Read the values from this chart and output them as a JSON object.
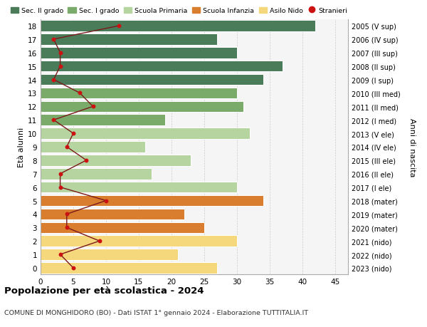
{
  "ages": [
    18,
    17,
    16,
    15,
    14,
    13,
    12,
    11,
    10,
    9,
    8,
    7,
    6,
    5,
    4,
    3,
    2,
    1,
    0
  ],
  "years": [
    "2005 (V sup)",
    "2006 (IV sup)",
    "2007 (III sup)",
    "2008 (II sup)",
    "2009 (I sup)",
    "2010 (III med)",
    "2011 (II med)",
    "2012 (I med)",
    "2013 (V ele)",
    "2014 (IV ele)",
    "2015 (III ele)",
    "2016 (II ele)",
    "2017 (I ele)",
    "2018 (mater)",
    "2019 (mater)",
    "2020 (mater)",
    "2021 (nido)",
    "2022 (nido)",
    "2023 (nido)"
  ],
  "bar_values": [
    42,
    27,
    30,
    37,
    34,
    30,
    31,
    19,
    32,
    16,
    23,
    17,
    30,
    34,
    22,
    25,
    30,
    21,
    27
  ],
  "stranieri": [
    12,
    2,
    3,
    3,
    2,
    6,
    8,
    2,
    5,
    4,
    7,
    3,
    3,
    10,
    4,
    4,
    9,
    3,
    5
  ],
  "bar_colors": [
    "#4a7c59",
    "#4a7c59",
    "#4a7c59",
    "#4a7c59",
    "#4a7c59",
    "#7aab6b",
    "#7aab6b",
    "#7aab6b",
    "#b5d4a0",
    "#b5d4a0",
    "#b5d4a0",
    "#b5d4a0",
    "#b5d4a0",
    "#d97e2e",
    "#d97e2e",
    "#d97e2e",
    "#f5d87c",
    "#f5d87c",
    "#f5d87c"
  ],
  "legend_labels": [
    "Sec. II grado",
    "Sec. I grado",
    "Scuola Primaria",
    "Scuola Infanzia",
    "Asilo Nido",
    "Stranieri"
  ],
  "legend_colors_list": [
    "#4a7c59",
    "#7aab6b",
    "#b5d4a0",
    "#d97e2e",
    "#f5d87c",
    "#cc1111"
  ],
  "title_main": "Popolazione per età scolastica - 2024",
  "title_sub": "COMUNE DI MONGHIDORO (BO) - Dati ISTAT 1° gennaio 2024 - Elaborazione TUTTITALIA.IT",
  "ylabel_left": "Età alunni",
  "ylabel_right": "Anni di nascita",
  "xlim": [
    0,
    47
  ],
  "xticks": [
    0,
    5,
    10,
    15,
    20,
    25,
    30,
    35,
    40,
    45
  ],
  "bar_height": 0.82,
  "background_color": "#f5f5f5",
  "stranieri_line_color": "#7a1a1a",
  "stranieri_dot_color": "#cc1111"
}
